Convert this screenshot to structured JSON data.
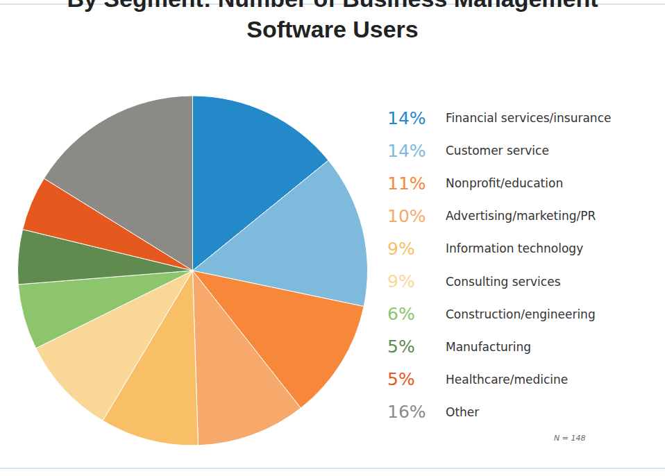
{
  "chart_data": {
    "type": "pie",
    "title": "By Segment: Number of Business Management Software Users",
    "categories": [
      "Financial services/insurance",
      "Customer service",
      "Nonprofit/education",
      "Advertising/marketing/PR",
      "Information technology",
      "Consulting services",
      "Construction/engineering",
      "Manufacturing",
      "Healthcare/medicine",
      "Other"
    ],
    "values": [
      14,
      14,
      11,
      10,
      9,
      9,
      6,
      5,
      5,
      16
    ],
    "value_labels": [
      "14%",
      "14%",
      "11%",
      "10%",
      "9%",
      "9%",
      "6%",
      "5%",
      "5%",
      "16%"
    ],
    "colors": [
      "#2389c9",
      "#7dbadb",
      "#f7883a",
      "#f7a96c",
      "#f8bf66",
      "#f9d897",
      "#8cc56c",
      "#5f8b4f",
      "#e5581e",
      "#8b8a85"
    ],
    "annotations": [
      "N = 148"
    ]
  }
}
